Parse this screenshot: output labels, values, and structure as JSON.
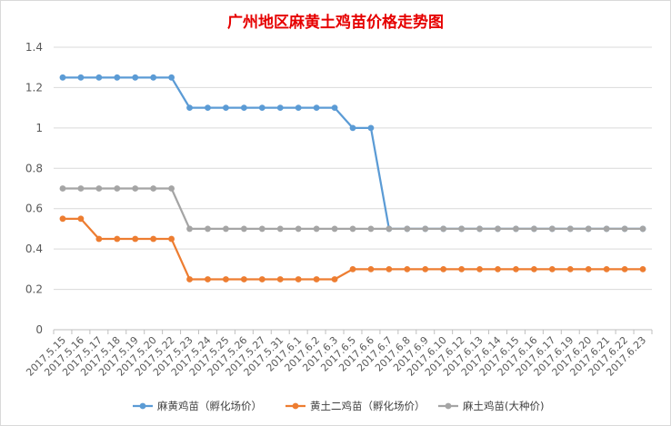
{
  "chart_data": {
    "type": "line",
    "title": "广州地区麻黄土鸡苗价格走势图",
    "xlabel": "",
    "ylabel": "",
    "ylim": [
      0,
      1.4
    ],
    "yticks": [
      "0",
      "0.2",
      "0.4",
      "0.6",
      "0.8",
      "1",
      "1.2",
      "1.4"
    ],
    "grid": true,
    "legend_position": "bottom",
    "categories": [
      "2017.5.15",
      "2017.5.16",
      "2017.5.17",
      "2017.5.18",
      "2017.5.19",
      "2017.5.20",
      "2017.5.22",
      "2017.5.23",
      "2017.5.24",
      "2017.5.25",
      "2017.5.26",
      "2017.5.27",
      "2017.5.31",
      "2017.6.1",
      "2017.6.2",
      "2017.6.3",
      "2017.6.5",
      "2017.6.6",
      "2017.6.7",
      "2017.6.8",
      "2017.6.9",
      "2017.6.10",
      "2017.6.12",
      "2017.6.13",
      "2017.6.14",
      "2017.6.15",
      "2017.6.16",
      "2017.6.17",
      "2017.6.19",
      "2017.6.20",
      "2017.6.21",
      "2017.6.22",
      "2017.6.23"
    ],
    "series": [
      {
        "name": "麻黄鸡苗（孵化场价）",
        "color": "#5b9bd5",
        "values": [
          1.25,
          1.25,
          1.25,
          1.25,
          1.25,
          1.25,
          1.25,
          1.1,
          1.1,
          1.1,
          1.1,
          1.1,
          1.1,
          1.1,
          1.1,
          1.1,
          1.0,
          1.0,
          0.5,
          0.5,
          0.5,
          0.5,
          0.5,
          0.5,
          0.5,
          0.5,
          0.5,
          0.5,
          0.5,
          0.5,
          0.5,
          0.5,
          0.5
        ]
      },
      {
        "name": "黄土二鸡苗（孵化场价）",
        "color": "#ed7d31",
        "values": [
          0.55,
          0.55,
          0.45,
          0.45,
          0.45,
          0.45,
          0.45,
          0.25,
          0.25,
          0.25,
          0.25,
          0.25,
          0.25,
          0.25,
          0.25,
          0.25,
          0.3,
          0.3,
          0.3,
          0.3,
          0.3,
          0.3,
          0.3,
          0.3,
          0.3,
          0.3,
          0.3,
          0.3,
          0.3,
          0.3,
          0.3,
          0.3,
          0.3
        ]
      },
      {
        "name": "麻土鸡苗(大种价)",
        "color": "#a5a5a5",
        "values": [
          0.7,
          0.7,
          0.7,
          0.7,
          0.7,
          0.7,
          0.7,
          0.5,
          0.5,
          0.5,
          0.5,
          0.5,
          0.5,
          0.5,
          0.5,
          0.5,
          0.5,
          0.5,
          0.5,
          0.5,
          0.5,
          0.5,
          0.5,
          0.5,
          0.5,
          0.5,
          0.5,
          0.5,
          0.5,
          0.5,
          0.5,
          0.5,
          0.5
        ]
      }
    ]
  }
}
